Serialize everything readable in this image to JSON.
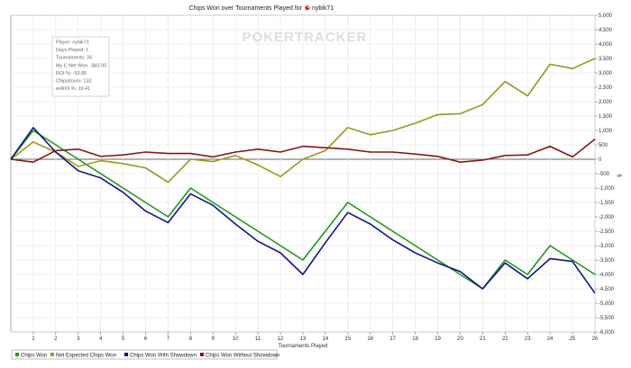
{
  "chart_data": {
    "type": "line",
    "title": "Chips Won over Tournaments Played for",
    "player_name": "nybik71",
    "xlabel": "Tournaments Played",
    "ylabel": "$",
    "watermark": "POKERTRACKER",
    "x": [
      0,
      1,
      2,
      3,
      4,
      5,
      6,
      7,
      8,
      9,
      10,
      11,
      12,
      13,
      14,
      15,
      16,
      17,
      18,
      19,
      20,
      21,
      22,
      23,
      24,
      25,
      26
    ],
    "xlim": [
      0,
      26
    ],
    "xticks": [
      "1",
      "2",
      "3",
      "4",
      "5",
      "6",
      "7",
      "8",
      "9",
      "10",
      "11",
      "12",
      "13",
      "14",
      "15",
      "16",
      "17",
      "18",
      "19",
      "20",
      "21",
      "22",
      "23",
      "24",
      "25",
      "26"
    ],
    "ylim": [
      -6000,
      5000
    ],
    "yticks": [
      "5,000",
      "4,500",
      "4,000",
      "3,500",
      "3,000",
      "2,500",
      "2,000",
      "1,500",
      "1,000",
      "500",
      "0",
      "-500",
      "-1,000",
      "-1,500",
      "-2,000",
      "-2,500",
      "-3,000",
      "-3,500",
      "-4,000",
      "-4,500",
      "-5,000",
      "-5,500",
      "-6,000"
    ],
    "grid": true,
    "legend_position": "bottom",
    "series": [
      {
        "name": "Chips Won",
        "color": "#1a9a1a",
        "values": [
          0,
          1000,
          500,
          0,
          -500,
          -1000,
          -1500,
          -2000,
          -1000,
          -1500,
          -2000,
          -2500,
          -3000,
          -3500,
          -2500,
          -1500,
          -2000,
          -2500,
          -3000,
          -3500,
          -4000,
          -4500,
          -3500,
          -4000,
          -3000,
          -3500,
          -4000
        ]
      },
      {
        "name": "Net Expected Chips Won",
        "color": "#9a9a14",
        "values": [
          0,
          600,
          250,
          -250,
          -50,
          -150,
          -300,
          -800,
          0,
          -80,
          130,
          -200,
          -600,
          0,
          300,
          1100,
          850,
          1000,
          1250,
          1550,
          1580,
          1900,
          2700,
          2200,
          3300,
          3150,
          3500
        ]
      },
      {
        "name": "Chips Won With Showdown",
        "color": "#14148c",
        "values": [
          0,
          1100,
          250,
          -400,
          -650,
          -1150,
          -1800,
          -2200,
          -1200,
          -1600,
          -2250,
          -2850,
          -3250,
          -4000,
          -2900,
          -1850,
          -2250,
          -2800,
          -3250,
          -3600,
          -3900,
          -4500,
          -3600,
          -4150,
          -3450,
          -3550,
          -4650
        ]
      },
      {
        "name": "Chips Won Without Showdown",
        "color": "#8c1414",
        "values": [
          0,
          -100,
          300,
          350,
          100,
          150,
          250,
          200,
          200,
          80,
          250,
          350,
          250,
          450,
          400,
          350,
          250,
          250,
          180,
          100,
          -100,
          -30,
          130,
          150,
          450,
          80,
          700
        ]
      }
    ],
    "info_box": [
      "Player: nybik71",
      "Days Played: 1",
      "Tournaments: 26",
      "My C Net Won: -$42.00",
      "ROI %: -53.85",
      "Chips/tourn: 133",
      "evROI %: 19.41"
    ]
  }
}
